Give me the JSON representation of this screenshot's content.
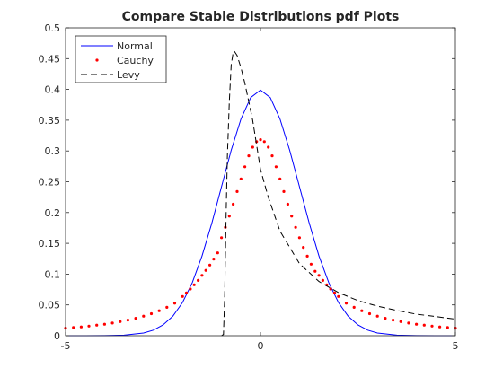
{
  "chart_data": {
    "type": "line",
    "title": "Compare Stable Distributions pdf Plots",
    "xlim": [
      -5,
      5
    ],
    "ylim": [
      0,
      0.5
    ],
    "xticks": [
      -5,
      0,
      5
    ],
    "xtick_labels": [
      "-5",
      "0",
      "5"
    ],
    "yticks": [
      0,
      0.05,
      0.1,
      0.15,
      0.2,
      0.25,
      0.3,
      0.35,
      0.4,
      0.45,
      0.5
    ],
    "ytick_labels": [
      "0",
      "0.05",
      "0.1",
      "0.15",
      "0.2",
      "0.25",
      "0.3",
      "0.35",
      "0.4",
      "0.45",
      "0.5"
    ],
    "grid": false,
    "legend_position": "top-left",
    "series": [
      {
        "name": "Normal",
        "style": "solid-line",
        "color": "#0000ff",
        "x": [
          -5,
          -4.5,
          -4,
          -3.5,
          -3,
          -2.75,
          -2.5,
          -2.25,
          -2,
          -1.75,
          -1.5,
          -1.25,
          -1,
          -0.75,
          -0.5,
          -0.25,
          0,
          0.25,
          0.5,
          0.75,
          1,
          1.25,
          1.5,
          1.75,
          2,
          2.25,
          2.5,
          2.75,
          3,
          3.5,
          4,
          4.5,
          5
        ],
        "y": [
          0.0,
          0.0,
          0.0001,
          0.0009,
          0.0044,
          0.0091,
          0.0175,
          0.0317,
          0.054,
          0.0863,
          0.1295,
          0.1826,
          0.242,
          0.3011,
          0.3521,
          0.3867,
          0.3989,
          0.3867,
          0.3521,
          0.3011,
          0.242,
          0.1826,
          0.1295,
          0.0863,
          0.054,
          0.0317,
          0.0175,
          0.0091,
          0.0044,
          0.0009,
          0.0001,
          0.0,
          0.0
        ]
      },
      {
        "name": "Cauchy",
        "style": "dots",
        "color": "#ff0000",
        "x": [
          -5,
          -4.8,
          -4.6,
          -4.4,
          -4.2,
          -4,
          -3.8,
          -3.6,
          -3.4,
          -3.2,
          -3,
          -2.8,
          -2.6,
          -2.4,
          -2.2,
          -2,
          -1.9,
          -1.8,
          -1.7,
          -1.6,
          -1.5,
          -1.4,
          -1.3,
          -1.2,
          -1.1,
          -1,
          -0.9,
          -0.8,
          -0.7,
          -0.6,
          -0.5,
          -0.4,
          -0.3,
          -0.2,
          -0.1,
          0,
          0.1,
          0.2,
          0.3,
          0.4,
          0.5,
          0.6,
          0.7,
          0.8,
          0.9,
          1,
          1.1,
          1.2,
          1.3,
          1.4,
          1.5,
          1.6,
          1.7,
          1.8,
          1.9,
          2,
          2.2,
          2.4,
          2.6,
          2.8,
          3,
          3.2,
          3.4,
          3.6,
          3.8,
          4,
          4.2,
          4.4,
          4.6,
          4.8,
          5
        ],
        "y": [
          0.0122,
          0.0132,
          0.0143,
          0.0156,
          0.0172,
          0.0187,
          0.0206,
          0.0229,
          0.0254,
          0.0283,
          0.0318,
          0.0357,
          0.0405,
          0.0461,
          0.0527,
          0.0637,
          0.0695,
          0.0758,
          0.0826,
          0.0898,
          0.0979,
          0.1061,
          0.1147,
          0.1245,
          0.1345,
          0.1592,
          0.1759,
          0.1941,
          0.2136,
          0.2341,
          0.2546,
          0.2744,
          0.2922,
          0.3061,
          0.3152,
          0.3183,
          0.3152,
          0.3061,
          0.2922,
          0.2744,
          0.2546,
          0.2341,
          0.2136,
          0.1941,
          0.1759,
          0.1592,
          0.1435,
          0.1291,
          0.1162,
          0.1046,
          0.0979,
          0.0898,
          0.0826,
          0.0758,
          0.0695,
          0.0637,
          0.0527,
          0.0461,
          0.0405,
          0.0357,
          0.0318,
          0.0283,
          0.0254,
          0.0229,
          0.0206,
          0.0187,
          0.0172,
          0.0156,
          0.0143,
          0.0132,
          0.0122
        ]
      },
      {
        "name": "Levy",
        "style": "dashed-line",
        "color": "#000000",
        "x": [
          -1.0,
          -0.95,
          -0.92,
          -0.9,
          -0.88,
          -0.85,
          -0.8,
          -0.75,
          -0.7,
          -0.67,
          -0.6,
          -0.5,
          -0.4,
          -0.3,
          -0.2,
          0,
          0.2,
          0.5,
          1,
          1.5,
          2,
          2.5,
          3,
          3.5,
          4,
          4.5,
          5
        ],
        "y": [
          0.0,
          0.002,
          0.06,
          0.13,
          0.2,
          0.29,
          0.38,
          0.44,
          0.46,
          0.462,
          0.455,
          0.435,
          0.41,
          0.38,
          0.35,
          0.27,
          0.225,
          0.17,
          0.117,
          0.088,
          0.07,
          0.057,
          0.048,
          0.041,
          0.035,
          0.031,
          0.027
        ]
      }
    ]
  }
}
